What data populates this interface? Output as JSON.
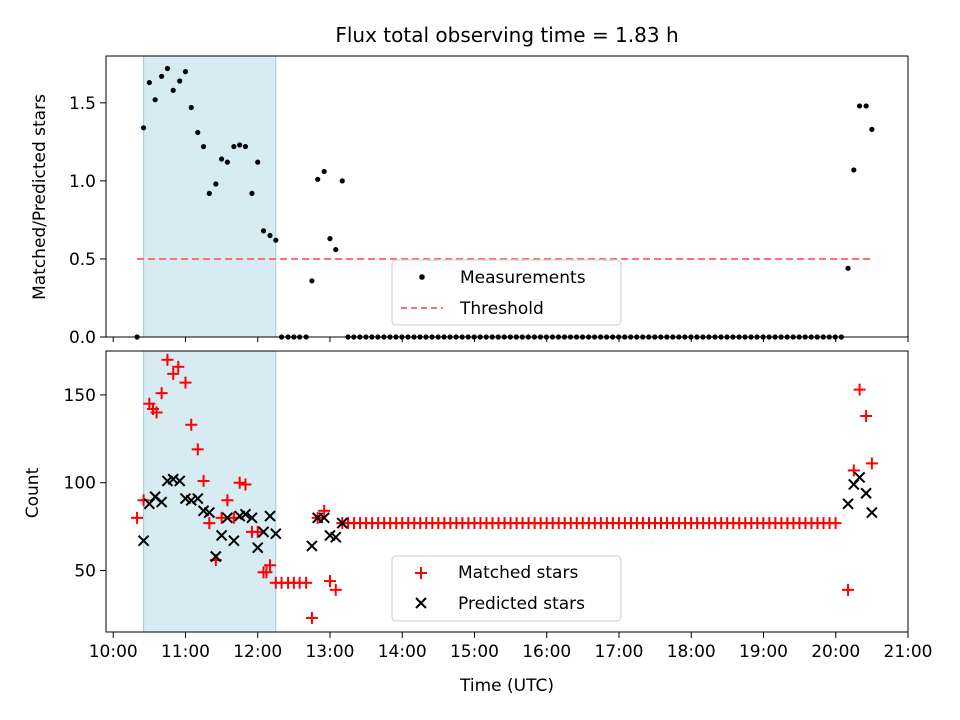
{
  "chart_data": [
    {
      "type": "scatter",
      "title": "Flux total observing time = 1.83 h",
      "xlabel": "",
      "ylabel": "Matched/Predicted stars",
      "xlim": [
        9.9,
        21.0
      ],
      "ylim": [
        0,
        1.8
      ],
      "yticks": [
        0.0,
        0.5,
        1.0,
        1.5
      ],
      "ytick_labels": [
        "0.0",
        "0.5",
        "1.0",
        "1.5"
      ],
      "shaded_span": {
        "x_start": 10.42,
        "x_end": 12.25,
        "color": "#add8e6"
      },
      "threshold": {
        "name": "Threshold",
        "y": 0.5,
        "x_start": 10.33,
        "x_end": 20.52,
        "color": "#ff7070"
      },
      "legend": {
        "location": "lower-center",
        "entries": [
          "Measurements",
          "Threshold"
        ]
      },
      "series": [
        {
          "name": "Measurements",
          "marker": "dot",
          "color": "#000000",
          "x": [
            10.33,
            10.42,
            10.5,
            10.58,
            10.67,
            10.75,
            10.83,
            10.92,
            11.0,
            11.08,
            11.17,
            11.25,
            11.33,
            11.42,
            11.5,
            11.58,
            11.67,
            11.75,
            11.83,
            11.92,
            12.0,
            12.08,
            12.17,
            12.25,
            12.33,
            12.42,
            12.5,
            12.58,
            12.67,
            12.75,
            12.83,
            12.92,
            13.0,
            13.08,
            13.17,
            13.25,
            20.17,
            20.25,
            20.33,
            20.42,
            20.5
          ],
          "y": [
            0.0,
            1.34,
            1.63,
            1.52,
            1.67,
            1.72,
            1.58,
            1.64,
            1.7,
            1.47,
            1.31,
            1.22,
            0.92,
            0.98,
            1.14,
            1.12,
            1.22,
            1.23,
            1.22,
            0.92,
            1.12,
            0.68,
            0.65,
            0.62,
            0.0,
            0.0,
            0.0,
            0.0,
            0.0,
            0.36,
            1.01,
            1.06,
            0.63,
            0.56,
            1.0,
            0.0,
            0.44,
            1.07,
            1.48,
            1.48,
            1.33
          ]
        }
      ],
      "zero_run": {
        "x_start": 13.33,
        "x_end": 20.08,
        "step": 0.0833,
        "y": 0.0
      }
    },
    {
      "type": "scatter",
      "title": "",
      "xlabel": "Time (UTC)",
      "ylabel": "Count",
      "xlim": [
        9.9,
        21.0
      ],
      "ylim": [
        15,
        175
      ],
      "yticks": [
        50,
        100,
        150
      ],
      "ytick_labels": [
        "50",
        "100",
        "150"
      ],
      "xticks": [
        10,
        11,
        12,
        13,
        14,
        15,
        16,
        17,
        18,
        19,
        20,
        21
      ],
      "xtick_labels": [
        "10:00",
        "11:00",
        "12:00",
        "13:00",
        "14:00",
        "15:00",
        "16:00",
        "17:00",
        "18:00",
        "19:00",
        "20:00",
        "21:00"
      ],
      "shaded_span": {
        "x_start": 10.42,
        "x_end": 12.25,
        "color": "#add8e6"
      },
      "legend": {
        "location": "lower-center",
        "entries": [
          "Matched stars",
          "Predicted stars"
        ]
      },
      "series": [
        {
          "name": "Matched stars",
          "marker": "plus",
          "color": "#ff0000",
          "x": [
            10.33,
            10.42,
            10.5,
            10.55,
            10.6,
            10.67,
            10.75,
            10.83,
            10.9,
            11.0,
            11.08,
            11.17,
            11.25,
            11.33,
            11.42,
            11.5,
            11.58,
            11.67,
            11.75,
            11.83,
            11.92,
            12.0,
            12.08,
            12.12,
            12.17,
            12.25,
            12.33,
            12.42,
            12.5,
            12.58,
            12.67,
            12.75,
            12.83,
            12.92,
            13.0,
            13.08,
            13.17,
            20.17,
            20.25,
            20.33,
            20.42,
            20.5
          ],
          "y": [
            80,
            90,
            145,
            142,
            140,
            151,
            170,
            162,
            166,
            157,
            133,
            119,
            101,
            77,
            56,
            80,
            90,
            80,
            100,
            99,
            72,
            72,
            49,
            49,
            53,
            43,
            43,
            43,
            43,
            43,
            43,
            23,
            80,
            84,
            44,
            39,
            77,
            39,
            107,
            153,
            138,
            111
          ]
        },
        {
          "name": "Predicted stars",
          "marker": "x",
          "color": "#000000",
          "x": [
            10.42,
            10.5,
            10.58,
            10.67,
            10.75,
            10.83,
            10.92,
            11.0,
            11.08,
            11.17,
            11.25,
            11.33,
            11.42,
            11.5,
            11.58,
            11.67,
            11.75,
            11.83,
            11.92,
            12.0,
            12.08,
            12.17,
            12.25,
            12.75,
            12.83,
            12.92,
            13.0,
            13.08,
            13.17,
            20.17,
            20.25,
            20.33,
            20.42,
            20.5
          ],
          "y": [
            67,
            88,
            92,
            89,
            101,
            102,
            101,
            91,
            90,
            91,
            84,
            83,
            58,
            70,
            80,
            67,
            81,
            82,
            80,
            63,
            72,
            81,
            71,
            64,
            80,
            80,
            70,
            69,
            77,
            88,
            99,
            103,
            94,
            83
          ]
        }
      ],
      "flat_run": {
        "series": "Matched stars",
        "x_start": 13.25,
        "x_end": 20.08,
        "step": 0.0833,
        "y": 77
      }
    }
  ]
}
